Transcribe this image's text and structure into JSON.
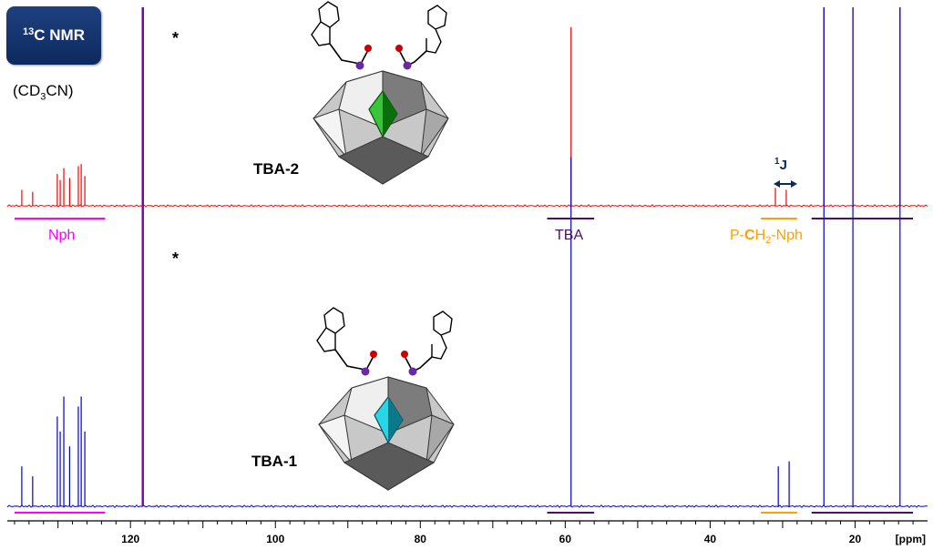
{
  "header": {
    "badge_label": "C NMR",
    "badge_sup": "13",
    "solvent_pre": "(CD",
    "solvent_sub": "3",
    "solvent_post": "CN)"
  },
  "samples": {
    "top": "TBA-2",
    "bottom": "TBA-1"
  },
  "annotations": {
    "star": "*",
    "nph": "Nph",
    "tba": "TBA",
    "pch2_pre": "P-",
    "pch2_c": "C",
    "pch2_h": "H",
    "pch2_sub": "2",
    "pch2_post": "-Nph",
    "j_sup": "1",
    "j_label": "J"
  },
  "colors": {
    "tba2": "#ff0000",
    "tba1": "#0000cc",
    "solvent_peak": "#7a00b0",
    "nph": "#ff00ff",
    "tba_bar": "#4b1064",
    "pch2": "#ffa000",
    "badge": "#13306b",
    "arrow": "#0d2a5e"
  },
  "chart_data": {
    "type": "line",
    "title": "",
    "xlabel": "[ppm]",
    "ylabel": "",
    "xlim": [
      137,
      10
    ],
    "x_reversed": true,
    "x_ticks": [
      120,
      100,
      80,
      60,
      40,
      20
    ],
    "y_axis_shown": false,
    "series": [
      {
        "name": "TBA-2",
        "color": "#ff0000",
        "peaks_ppm": [
          135.0,
          133.5,
          130.1,
          129.7,
          129.2,
          128.4,
          127.2,
          126.8,
          126.3,
          118.3,
          59.2,
          31.0,
          29.5,
          24.3,
          20.3,
          13.8
        ],
        "rel_heights": [
          0.08,
          0.07,
          0.16,
          0.13,
          0.19,
          0.14,
          0.2,
          0.21,
          0.15,
          1.0,
          0.9,
          0.09,
          0.08,
          1.0,
          1.0,
          1.0
        ]
      },
      {
        "name": "TBA-1",
        "color": "#0000cc",
        "peaks_ppm": [
          135.0,
          133.5,
          130.1,
          129.7,
          129.2,
          128.4,
          127.2,
          126.8,
          126.3,
          118.3,
          59.2,
          30.6,
          29.1,
          24.3,
          20.3,
          13.8
        ],
        "rel_heights": [
          0.08,
          0.06,
          0.18,
          0.15,
          0.22,
          0.12,
          0.2,
          0.22,
          0.15,
          1.0,
          0.7,
          0.08,
          0.09,
          1.0,
          1.0,
          1.0
        ]
      }
    ],
    "assignment_bars": [
      {
        "label": "Nph",
        "from_ppm": 136,
        "to_ppm": 123.5
      },
      {
        "label": "TBA",
        "from_ppm": 62.5,
        "to_ppm": 56
      },
      {
        "label": "P-CH2-Nph",
        "from_ppm": 33,
        "to_ppm": 28
      },
      {
        "label": "",
        "from_ppm": 26,
        "to_ppm": 12
      }
    ],
    "grid": false
  }
}
